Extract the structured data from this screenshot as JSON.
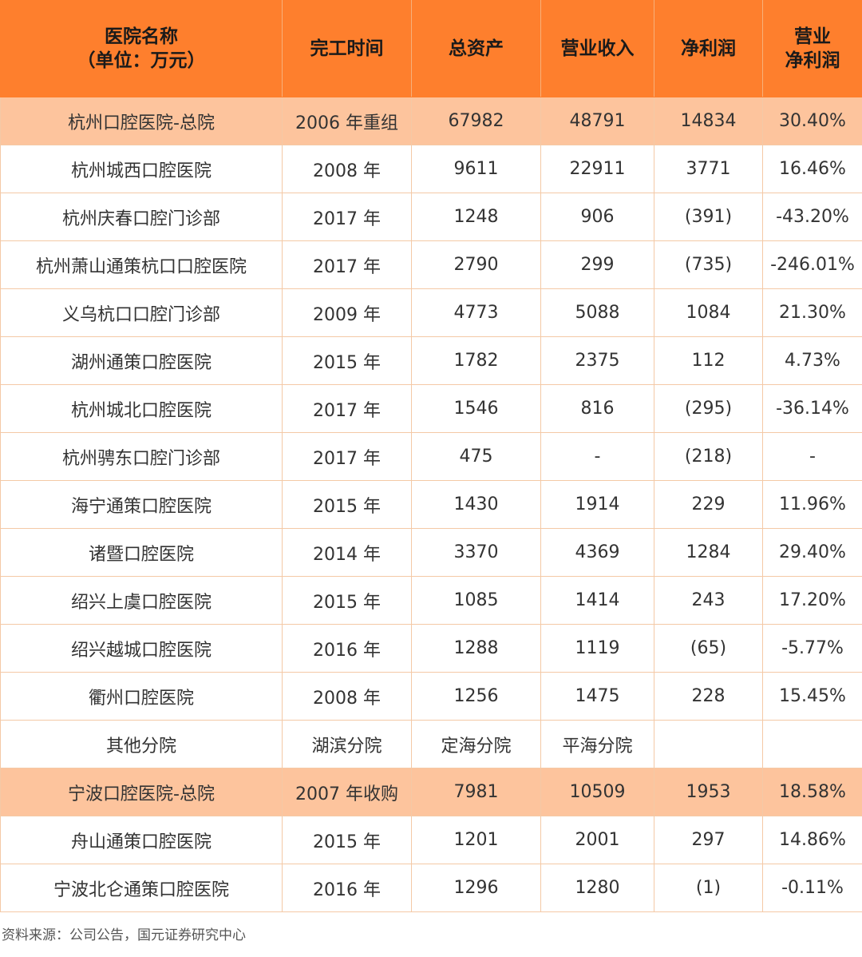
{
  "header": {
    "name_line1": "医院名称",
    "name_line2": "（单位：万元）",
    "completion_time": "完工时间",
    "total_assets": "总资产",
    "revenue": "营业收入",
    "net_profit": "净利润",
    "margin_line1": "营业",
    "margin_line2": "净利润"
  },
  "rows": [
    {
      "name": "杭州口腔医院-总院",
      "time": "2006 年重组",
      "assets": "67982",
      "revenue": "48791",
      "profit": "14834",
      "margin": "30.40%",
      "hq": true,
      "neg": false
    },
    {
      "name": "杭州城西口腔医院",
      "time": "2008 年",
      "assets": "9611",
      "revenue": "22911",
      "profit": "3771",
      "margin": "16.46%",
      "hq": false,
      "neg": false
    },
    {
      "name": "杭州庆春口腔门诊部",
      "time": "2017 年",
      "assets": "1248",
      "revenue": "906",
      "profit": "(391)",
      "margin": "-43.20%",
      "hq": false,
      "neg": true
    },
    {
      "name": "杭州萧山通策杭口口腔医院",
      "time": "2017 年",
      "assets": "2790",
      "revenue": "299",
      "profit": "(735)",
      "margin": "-246.01%",
      "hq": false,
      "neg": true
    },
    {
      "name": "义乌杭口口腔门诊部",
      "time": "2009 年",
      "assets": "4773",
      "revenue": "5088",
      "profit": "1084",
      "margin": "21.30%",
      "hq": false,
      "neg": false
    },
    {
      "name": "湖州通策口腔医院",
      "time": "2015 年",
      "assets": "1782",
      "revenue": "2375",
      "profit": "112",
      "margin": "4.73%",
      "hq": false,
      "neg": false
    },
    {
      "name": "杭州城北口腔医院",
      "time": "2017 年",
      "assets": "1546",
      "revenue": "816",
      "profit": "(295)",
      "margin": "-36.14%",
      "hq": false,
      "neg": true
    },
    {
      "name": "杭州骋东口腔门诊部",
      "time": "2017 年",
      "assets": "475",
      "revenue": "-",
      "profit": "(218)",
      "margin": "-",
      "hq": false,
      "neg": true
    },
    {
      "name": "海宁通策口腔医院",
      "time": "2015 年",
      "assets": "1430",
      "revenue": "1914",
      "profit": "229",
      "margin": "11.96%",
      "hq": false,
      "neg": false
    },
    {
      "name": "诸暨口腔医院",
      "time": "2014 年",
      "assets": "3370",
      "revenue": "4369",
      "profit": "1284",
      "margin": "29.40%",
      "hq": false,
      "neg": false
    },
    {
      "name": "绍兴上虞口腔医院",
      "time": "2015 年",
      "assets": "1085",
      "revenue": "1414",
      "profit": "243",
      "margin": "17.20%",
      "hq": false,
      "neg": false
    },
    {
      "name": "绍兴越城口腔医院",
      "time": "2016 年",
      "assets": "1288",
      "revenue": "1119",
      "profit": "(65)",
      "margin": "-5.77%",
      "hq": false,
      "neg": true
    },
    {
      "name": "衢州口腔医院",
      "time": "2008 年",
      "assets": "1256",
      "revenue": "1475",
      "profit": "228",
      "margin": "15.45%",
      "hq": false,
      "neg": false
    },
    {
      "name": "其他分院",
      "time": "湖滨分院",
      "assets": "定海分院",
      "revenue": "平海分院",
      "profit": "",
      "margin": "",
      "hq": false,
      "neg": false
    },
    {
      "name": "宁波口腔医院-总院",
      "time": "2007 年收购",
      "assets": "7981",
      "revenue": "10509",
      "profit": "1953",
      "margin": "18.58%",
      "hq": true,
      "neg": false
    },
    {
      "name": "舟山通策口腔医院",
      "time": "2015 年",
      "assets": "1201",
      "revenue": "2001",
      "profit": "297",
      "margin": "14.86%",
      "hq": false,
      "neg": false
    },
    {
      "name": "宁波北仑通策口腔医院",
      "time": "2016 年",
      "assets": "1296",
      "revenue": "1280",
      "profit": "(1)",
      "margin": "-0.11%",
      "hq": false,
      "neg": true
    }
  ],
  "footer": {
    "source": "资料来源：公司公告，国元证券研究中心"
  }
}
